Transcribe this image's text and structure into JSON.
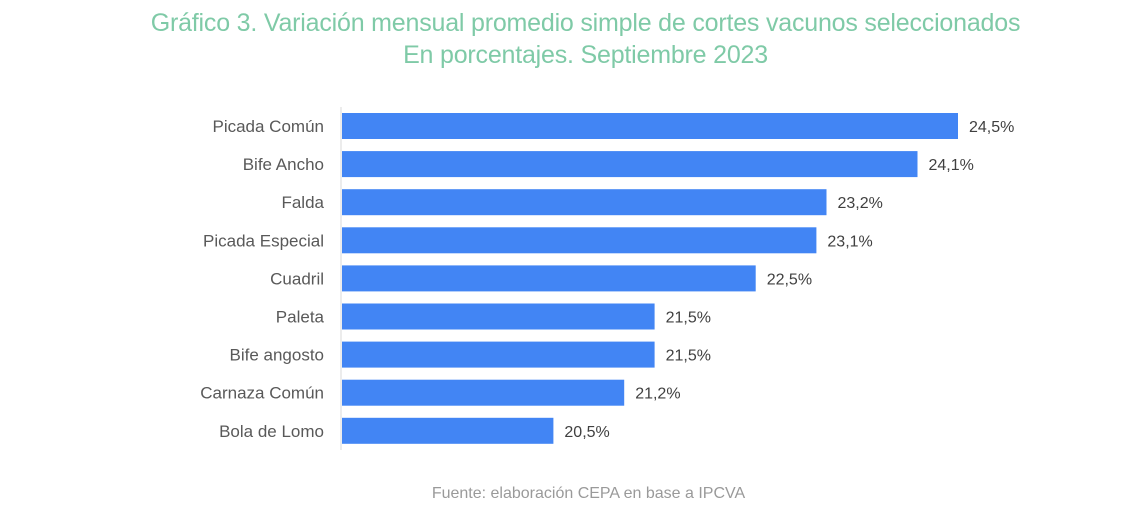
{
  "chart_data": {
    "type": "bar",
    "orientation": "horizontal",
    "title": "Gráfico 3. Variación mensual promedio simple de cortes vacunos seleccionados",
    "subtitle": "En porcentajes. Septiembre 2023",
    "source": "Fuente: elaboración CEPA en base a IPCVA",
    "categories": [
      "Picada Común",
      "Bife Ancho",
      "Falda",
      "Picada Especial",
      "Cuadril",
      "Paleta",
      "Bife angosto",
      "Carnaza Común",
      "Bola de Lomo"
    ],
    "values": [
      24.5,
      24.1,
      23.2,
      23.1,
      22.5,
      21.5,
      21.5,
      21.2,
      20.5
    ],
    "value_labels": [
      "24,5%",
      "24,1%",
      "23,2%",
      "23,1%",
      "22,5%",
      "21,5%",
      "21,5%",
      "21,2%",
      "20,5%"
    ],
    "xlim": [
      18.4,
      24.5
    ],
    "xlabel": "",
    "ylabel": "",
    "grid": false,
    "legend": "none",
    "colors": {
      "bar": "#4285f4",
      "title": "#7fcaa7",
      "axis": "#d9d9d9"
    }
  }
}
